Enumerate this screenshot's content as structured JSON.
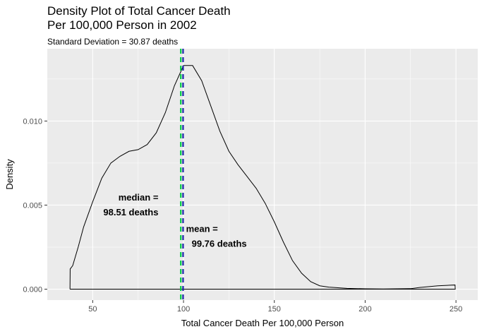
{
  "chart_data": {
    "type": "area",
    "title_line1": "Density Plot of Total Cancer Death",
    "title_line2": "Per 100,000 Person in 2002",
    "subtitle": "Standard Deviation = 30.87 deaths",
    "xlabel": "Total Cancer Death Per 100,000 Person",
    "ylabel": "Density",
    "xlim": [
      25,
      262
    ],
    "ylim": [
      -0.00065,
      0.0143
    ],
    "x_ticks": [
      50,
      100,
      150,
      200,
      250
    ],
    "y_ticks": [
      0.0,
      0.005,
      0.01
    ],
    "y_tick_labels": [
      "0.000",
      "0.005",
      "0.010"
    ],
    "grid": true,
    "background_color": "#EBEBEB",
    "line_color": "#000000",
    "density": [
      [
        37.5,
        0.0
      ],
      [
        37.6,
        0.0012
      ],
      [
        39,
        0.0014
      ],
      [
        42,
        0.0025
      ],
      [
        45,
        0.0037
      ],
      [
        50,
        0.0052
      ],
      [
        55,
        0.0066
      ],
      [
        60,
        0.0075
      ],
      [
        65,
        0.0079
      ],
      [
        70,
        0.0082
      ],
      [
        75,
        0.0083
      ],
      [
        80,
        0.0086
      ],
      [
        85,
        0.0093
      ],
      [
        90,
        0.0105
      ],
      [
        95,
        0.0121
      ],
      [
        100,
        0.0133
      ],
      [
        105,
        0.0133
      ],
      [
        110,
        0.0124
      ],
      [
        115,
        0.0109
      ],
      [
        120,
        0.0094
      ],
      [
        125,
        0.0082
      ],
      [
        130,
        0.0074
      ],
      [
        135,
        0.0067
      ],
      [
        140,
        0.006
      ],
      [
        145,
        0.0051
      ],
      [
        150,
        0.004
      ],
      [
        155,
        0.0028
      ],
      [
        160,
        0.0017
      ],
      [
        165,
        0.00095
      ],
      [
        170,
        0.00045
      ],
      [
        175,
        0.0002
      ],
      [
        180,
        0.00012
      ],
      [
        190,
        5e-05
      ],
      [
        200,
        2e-05
      ],
      [
        210,
        1e-05
      ],
      [
        225,
        3e-05
      ],
      [
        230,
        0.0001
      ],
      [
        240,
        0.0002
      ],
      [
        249.5,
        0.00025
      ],
      [
        249.6,
        0.0
      ]
    ],
    "median": {
      "value": 98.51,
      "color": "#00CC44",
      "label_line1": "median =",
      "label_line2": "98.51 deaths",
      "label_x": 85,
      "label_y": 0.0048
    },
    "mean": {
      "value": 99.76,
      "color": "#1E22AA",
      "label_line1": "mean =",
      "label_line2": "99.76 deaths",
      "label_x": 101,
      "label_y": 0.00295
    }
  }
}
